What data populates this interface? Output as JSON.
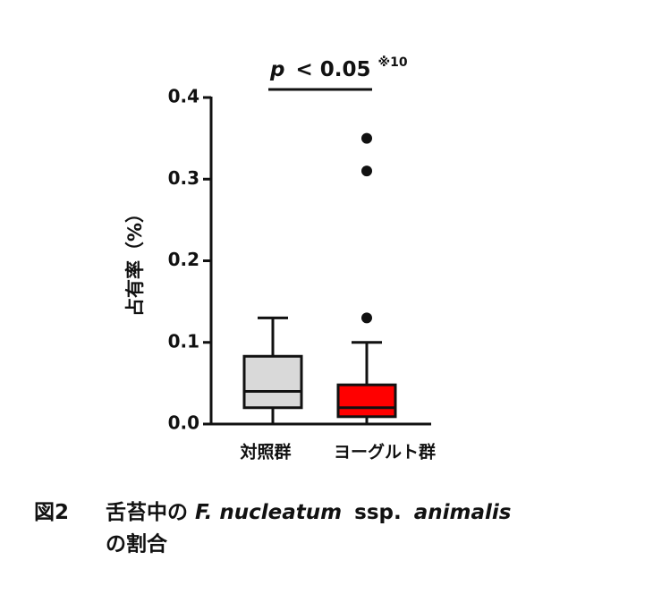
{
  "chart_data": {
    "type": "box",
    "y_label": "占有率（%）",
    "annotation": {
      "italic": "p",
      "text": "< 0.05",
      "note": "※10"
    },
    "categories": [
      "対照群",
      "ヨーグルト群"
    ],
    "boxes": [
      {
        "color": "#d9d9d9",
        "whisker_low": 0,
        "q1": 0.02,
        "median": 0.04,
        "q3": 0.083,
        "whisker_high": 0.13,
        "outliers": []
      },
      {
        "color": "#ff0000",
        "whisker_low": 0,
        "q1": 0.009,
        "median": 0.02,
        "q3": 0.048,
        "whisker_high": 0.1,
        "outliers": [
          0.13,
          0.31,
          0.35
        ]
      }
    ],
    "ylim": [
      0,
      0.4
    ],
    "yticks": [
      {
        "value": 0,
        "label": "0.0"
      },
      0.1,
      0.2,
      0.3,
      0.4
    ]
  },
  "caption": {
    "label": "図2",
    "parts": [
      "舌苔中の",
      "F. nucleatum",
      "ssp.",
      "animalis",
      "の割合"
    ]
  }
}
